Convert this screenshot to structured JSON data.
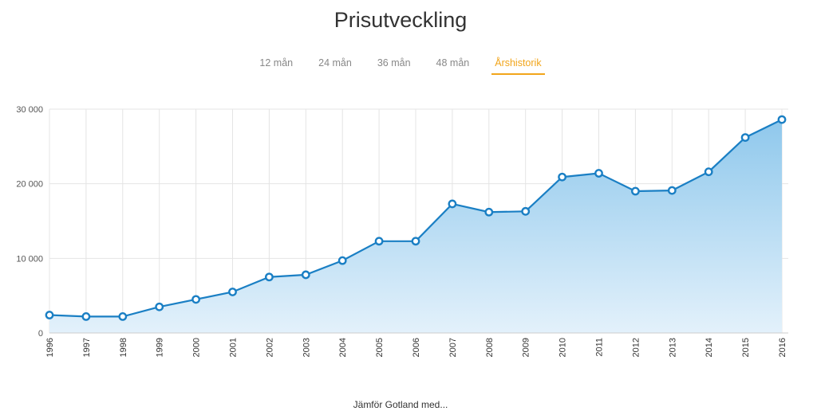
{
  "title": "Prisutveckling",
  "tabs": [
    {
      "label": "12 mån",
      "active": false
    },
    {
      "label": "24 mån",
      "active": false
    },
    {
      "label": "36 mån",
      "active": false
    },
    {
      "label": "48 mån",
      "active": false
    },
    {
      "label": "Årshistorik",
      "active": true
    }
  ],
  "colors": {
    "line": "#1a7fc4",
    "area_top": "#8fc8ec",
    "area_bottom": "#e3f1fb",
    "grid": "#e4e4e4",
    "active_tab": "#f2a51a"
  },
  "chart_data": {
    "type": "area",
    "x": [
      "1996",
      "1997",
      "1998",
      "1999",
      "2000",
      "2001",
      "2002",
      "2003",
      "2004",
      "2005",
      "2006",
      "2007",
      "2008",
      "2009",
      "2010",
      "2011",
      "2012",
      "2013",
      "2014",
      "2015",
      "2016"
    ],
    "series": [
      {
        "values": [
          2400,
          2200,
          2200,
          3500,
          4500,
          5500,
          7500,
          7800,
          9700,
          12300,
          12300,
          17300,
          16200,
          16300,
          20900,
          21400,
          19000,
          19100,
          21600,
          26200,
          28600
        ]
      }
    ],
    "ylim": [
      0,
      30000
    ],
    "yticks": [
      0,
      10000,
      20000,
      30000
    ],
    "ytick_labels": [
      "0",
      "10 000",
      "20 000",
      "30 000"
    ],
    "grid": true,
    "legend": "none"
  },
  "footer": "Jämför Gotland med..."
}
